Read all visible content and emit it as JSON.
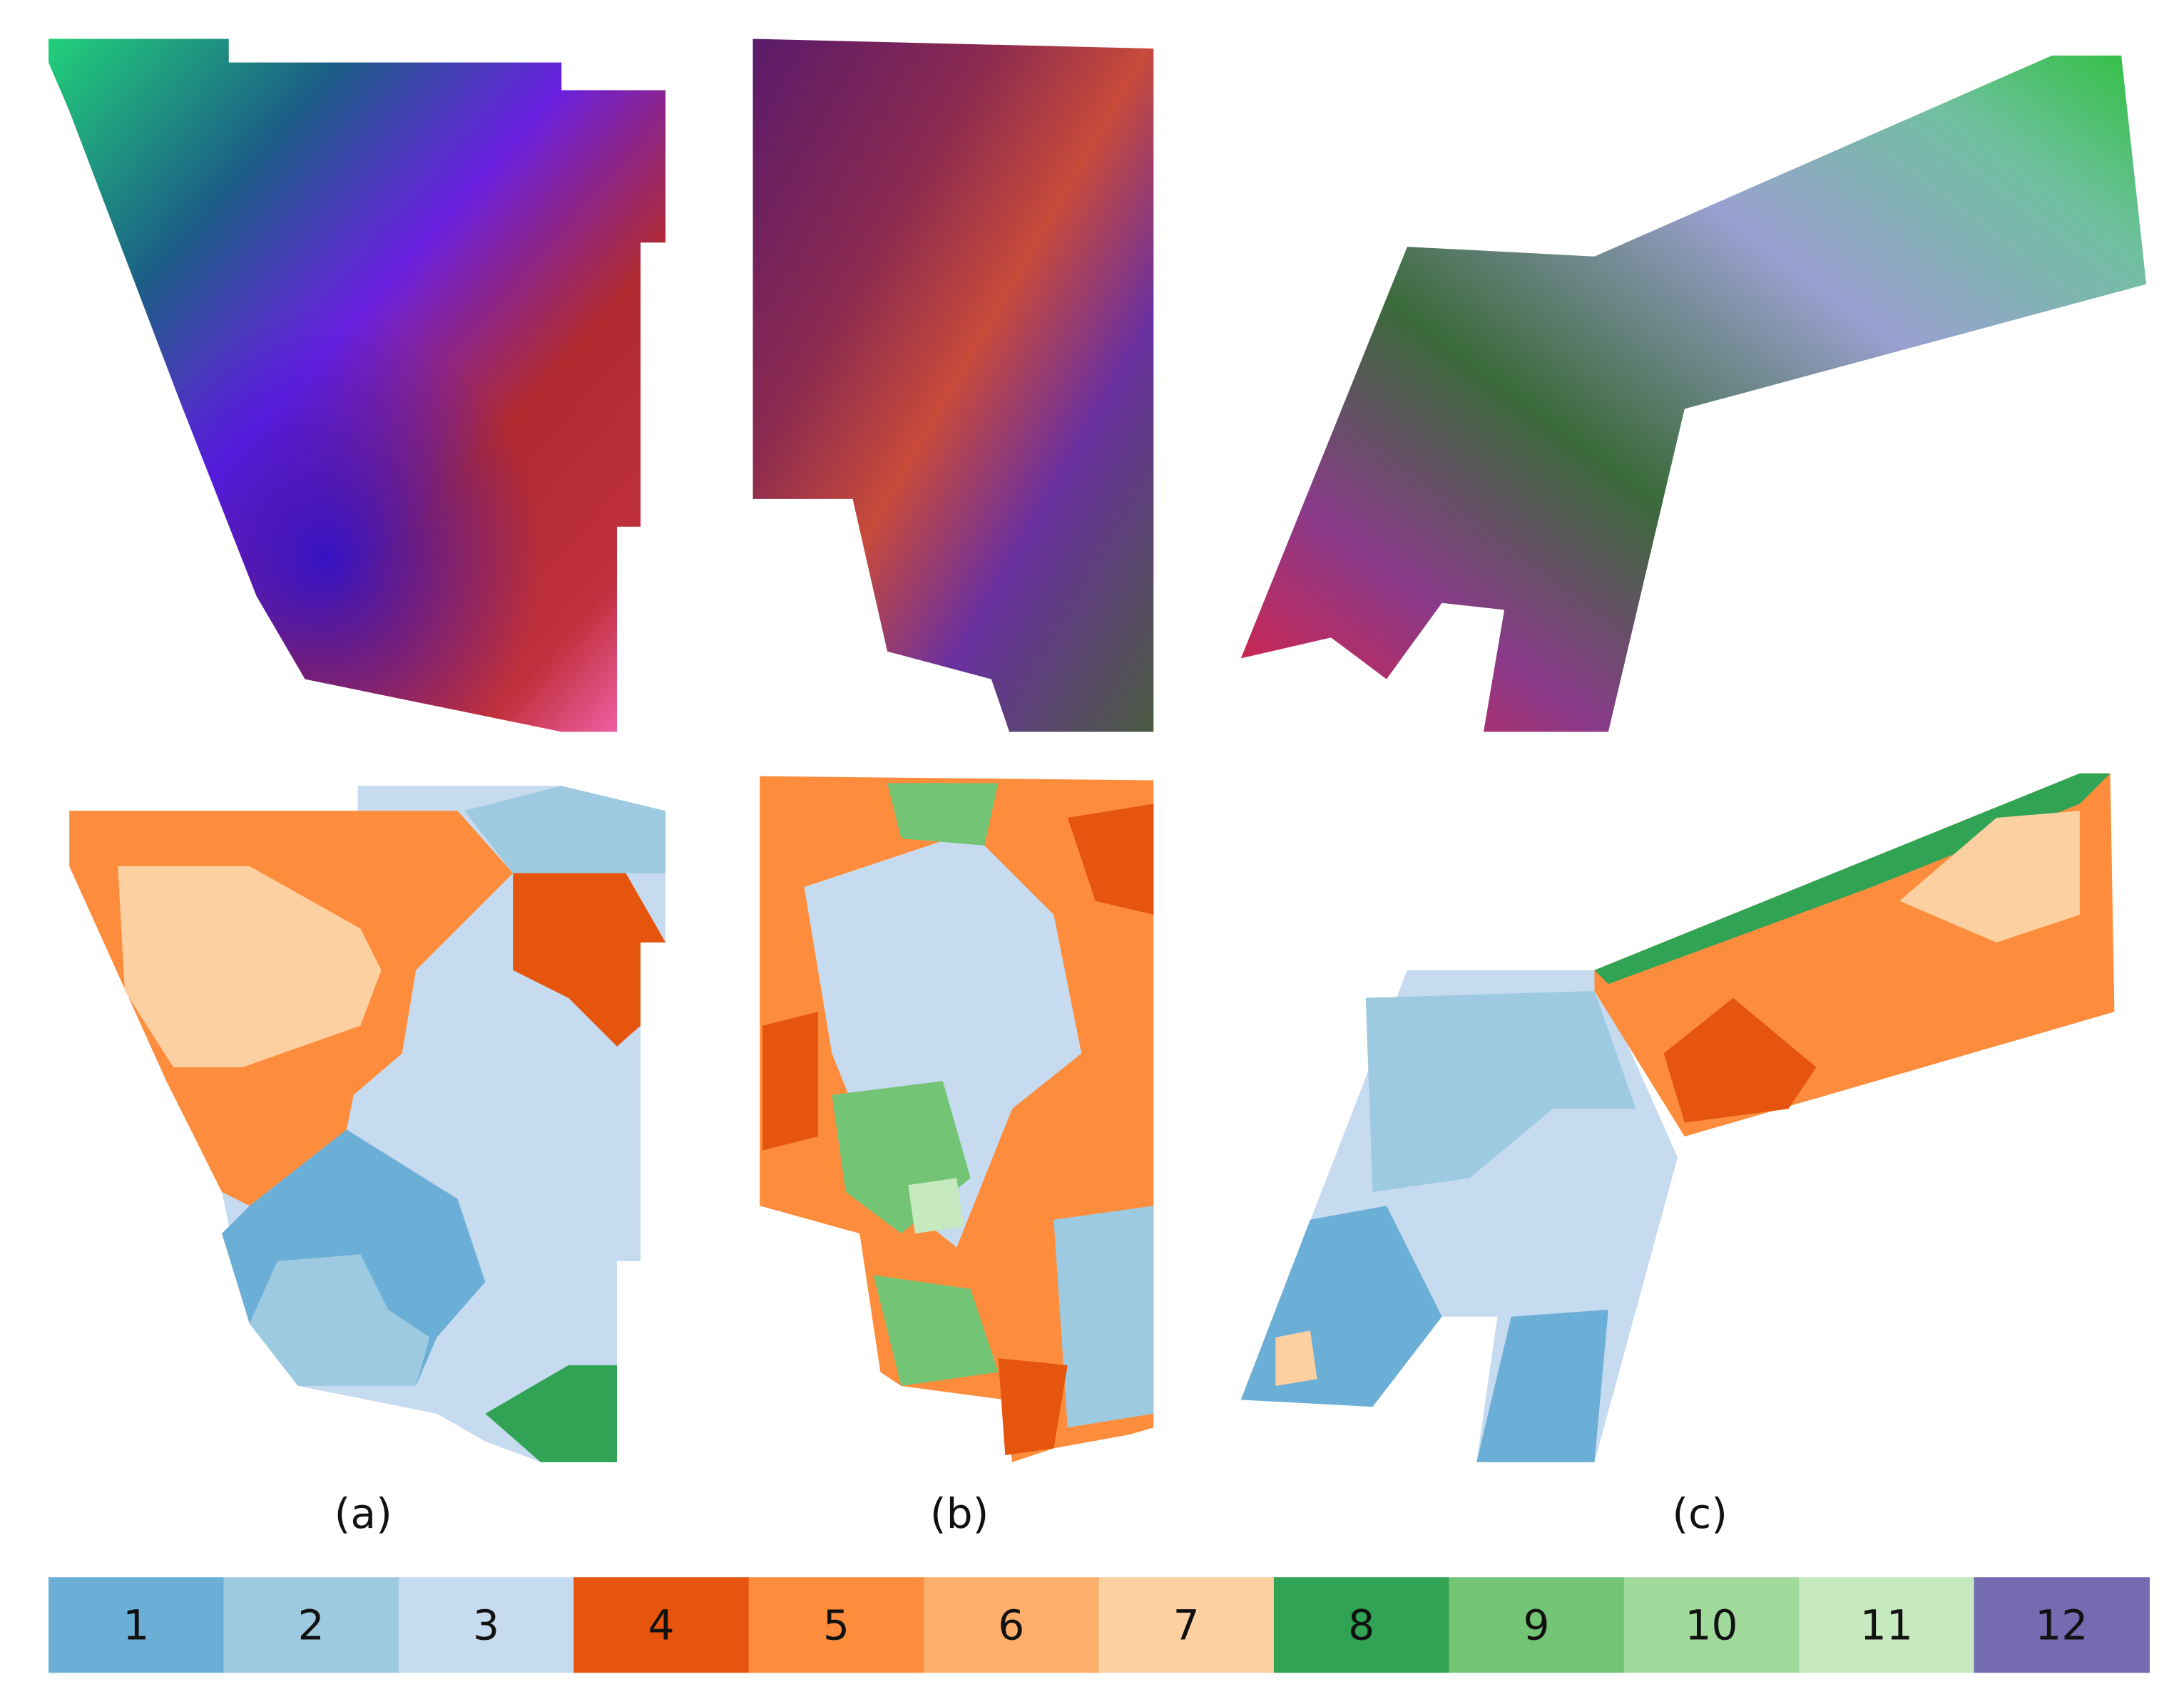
{
  "panels": [
    {
      "label": "(a)"
    },
    {
      "label": "(b)"
    },
    {
      "label": "(c)"
    }
  ],
  "legend": {
    "items": [
      {
        "label": "1",
        "color": "#6baed6"
      },
      {
        "label": "2",
        "color": "#9ecae1"
      },
      {
        "label": "3",
        "color": "#c6dbef"
      },
      {
        "label": "4",
        "color": "#e6550d"
      },
      {
        "label": "5",
        "color": "#fd8d3c"
      },
      {
        "label": "6",
        "color": "#fdae6b"
      },
      {
        "label": "7",
        "color": "#fdd0a2"
      },
      {
        "label": "8",
        "color": "#31a354"
      },
      {
        "label": "9",
        "color": "#74c476"
      },
      {
        "label": "10",
        "color": "#a1d99b"
      },
      {
        "label": "11",
        "color": "#c7e9c0"
      },
      {
        "label": "12",
        "color": "#756bb1"
      }
    ]
  }
}
